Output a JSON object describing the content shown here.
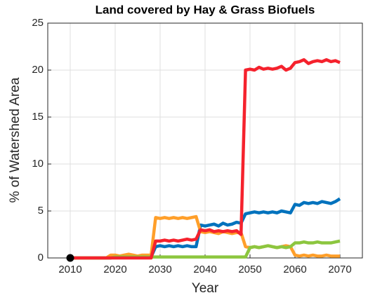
{
  "chart_data": {
    "type": "line",
    "title": "Land covered by Hay & Grass Biofuels",
    "xlabel": "Year",
    "ylabel": "% of Watershed Area",
    "x": [
      2010,
      2011,
      2012,
      2013,
      2014,
      2015,
      2016,
      2017,
      2018,
      2019,
      2020,
      2021,
      2022,
      2023,
      2024,
      2025,
      2026,
      2027,
      2028,
      2029,
      2030,
      2031,
      2032,
      2033,
      2034,
      2035,
      2036,
      2037,
      2038,
      2039,
      2040,
      2041,
      2042,
      2043,
      2044,
      2045,
      2046,
      2047,
      2048,
      2049,
      2050,
      2051,
      2052,
      2053,
      2054,
      2055,
      2056,
      2057,
      2058,
      2059,
      2060,
      2061,
      2062,
      2063,
      2064,
      2065,
      2066,
      2067,
      2068,
      2069,
      2070
    ],
    "series": [
      {
        "color": "#0072bd",
        "values": [
          0,
          0,
          0,
          0,
          0,
          0,
          0,
          0,
          0,
          0,
          0.1,
          0.1,
          0.1,
          0.1,
          0.1,
          0.1,
          0.1,
          0.1,
          0.1,
          1.2,
          1.3,
          1.2,
          1.3,
          1.2,
          1.3,
          1.2,
          1.3,
          1.2,
          1.2,
          3.5,
          3.4,
          3.5,
          3.6,
          3.4,
          3.7,
          3.5,
          3.6,
          3.8,
          3.7,
          4.7,
          4.8,
          4.9,
          4.8,
          4.9,
          4.8,
          4.9,
          4.8,
          5.0,
          4.9,
          4.8,
          5.7,
          5.6,
          5.9,
          5.8,
          5.9,
          5.8,
          6.0,
          5.9,
          5.8,
          6.0,
          6.3
        ]
      },
      {
        "color": "#ff9f2a",
        "values": [
          0,
          0,
          0,
          0,
          0,
          0,
          0,
          0,
          0,
          0.3,
          0.3,
          0.2,
          0.3,
          0.4,
          0.3,
          0.2,
          0.3,
          0.3,
          0.3,
          4.3,
          4.2,
          4.3,
          4.2,
          4.3,
          4.2,
          4.3,
          4.2,
          4.3,
          4.4,
          2.8,
          2.7,
          2.8,
          2.7,
          2.6,
          2.8,
          2.7,
          2.6,
          2.7,
          2.7,
          1.2,
          1.1,
          1.2,
          1.1,
          1.2,
          1.3,
          1.2,
          1.1,
          1.2,
          1.3,
          1.2,
          0.3,
          0.2,
          0.3,
          0.2,
          0.3,
          0.2,
          0.2,
          0.3,
          0.2,
          0.2,
          0.2
        ]
      },
      {
        "color": "#8cc63f",
        "values": [
          0,
          0,
          0,
          0,
          0,
          0,
          0,
          0,
          0,
          0,
          0.1,
          0.1,
          0.1,
          0.1,
          0.1,
          0.1,
          0.1,
          0.1,
          0.1,
          0.1,
          0.1,
          0.1,
          0.1,
          0.1,
          0.1,
          0.1,
          0.1,
          0.1,
          0.1,
          0.1,
          0.1,
          0.1,
          0.1,
          0.1,
          0.1,
          0.1,
          0.1,
          0.1,
          0.1,
          0.1,
          1.1,
          1.2,
          1.1,
          1.2,
          1.3,
          1.2,
          1.1,
          1.2,
          1.1,
          1.2,
          1.6,
          1.6,
          1.7,
          1.6,
          1.6,
          1.7,
          1.6,
          1.6,
          1.6,
          1.7,
          1.8
        ]
      },
      {
        "color": "#f5222d",
        "values": [
          0,
          0,
          0,
          0,
          0,
          0,
          0,
          0,
          0,
          0,
          0,
          0,
          0,
          0,
          0,
          0,
          0,
          0,
          0,
          1.8,
          1.8,
          1.9,
          1.8,
          1.9,
          1.8,
          1.9,
          2.0,
          1.9,
          2.0,
          3.0,
          2.9,
          3.0,
          2.8,
          2.9,
          2.8,
          2.9,
          2.8,
          2.9,
          2.5,
          20.0,
          20.1,
          20.0,
          20.3,
          20.1,
          20.2,
          20.1,
          20.2,
          20.4,
          20.0,
          20.2,
          20.8,
          20.9,
          21.1,
          20.7,
          20.9,
          21.0,
          20.9,
          21.1,
          20.9,
          21.0,
          20.8
        ]
      }
    ],
    "points": [
      {
        "x": 2010,
        "y": 0,
        "color": "#000000"
      }
    ],
    "xlim": [
      2005,
      2075
    ],
    "xticks": [
      2010,
      2020,
      2030,
      2040,
      2050,
      2060,
      2070
    ],
    "ylim": [
      0,
      25
    ],
    "yticks": [
      0,
      5,
      10,
      15,
      20,
      25
    ],
    "grid": true
  }
}
